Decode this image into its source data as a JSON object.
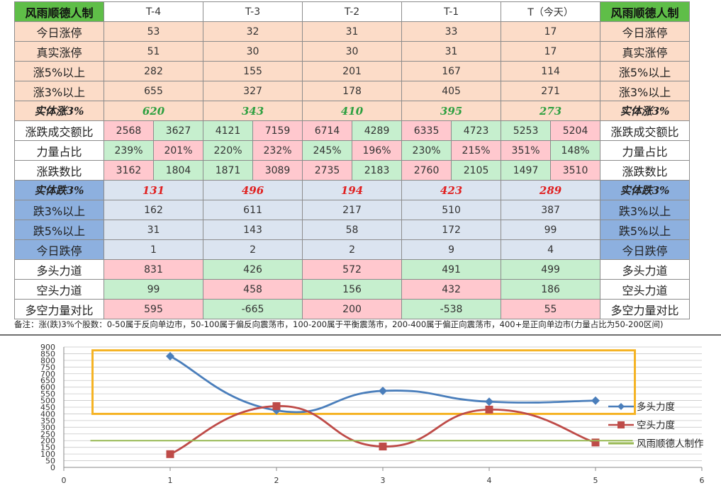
{
  "table": {
    "corner_label": "风雨顺德人制",
    "columns": [
      "T-4",
      "T-3",
      "T-2",
      "T-1",
      "T（今天）"
    ],
    "rows": [
      {
        "label": "今日涨停",
        "kind": "single",
        "section": "up",
        "values": [
          "53",
          "32",
          "31",
          "33",
          "17"
        ]
      },
      {
        "label": "真实涨停",
        "kind": "single",
        "section": "up",
        "values": [
          "51",
          "30",
          "30",
          "31",
          "17"
        ]
      },
      {
        "label": "涨5%以上",
        "kind": "single",
        "section": "up",
        "values": [
          "282",
          "155",
          "201",
          "167",
          "114"
        ]
      },
      {
        "label": "涨3%以上",
        "kind": "single",
        "section": "up",
        "values": [
          "655",
          "327",
          "178",
          "405",
          "271"
        ]
      },
      {
        "label": "实体涨3%",
        "kind": "bold",
        "section": "up",
        "tone": "green",
        "values": [
          "620",
          "343",
          "410",
          "395",
          "273"
        ]
      },
      {
        "label": "涨跌成交额比",
        "kind": "pair",
        "values": [
          "2568",
          "3627",
          "4121",
          "7159",
          "6714",
          "4289",
          "6335",
          "4723",
          "5253",
          "5204"
        ],
        "colors": [
          "red",
          "green",
          "green",
          "red",
          "red",
          "green",
          "red",
          "green",
          "green",
          "red"
        ]
      },
      {
        "label": "力量占比",
        "kind": "pair",
        "values": [
          "239%",
          "201%",
          "220%",
          "232%",
          "245%",
          "196%",
          "230%",
          "215%",
          "351%",
          "148%"
        ],
        "colors": [
          "green",
          "red",
          "green",
          "red",
          "green",
          "red",
          "green",
          "red",
          "red",
          "green"
        ]
      },
      {
        "label": "涨跌数比",
        "kind": "pair",
        "values": [
          "3162",
          "1804",
          "1871",
          "3089",
          "2735",
          "2183",
          "2760",
          "2105",
          "1497",
          "3510"
        ],
        "colors": [
          "red",
          "green",
          "green",
          "red",
          "red",
          "green",
          "red",
          "green",
          "green",
          "red"
        ]
      },
      {
        "label": "实体跌3%",
        "kind": "bold",
        "section": "down",
        "tone": "red",
        "values": [
          "131",
          "496",
          "194",
          "423",
          "289"
        ]
      },
      {
        "label": "跌3%以上",
        "kind": "single",
        "section": "down",
        "values": [
          "162",
          "611",
          "217",
          "510",
          "387"
        ]
      },
      {
        "label": "跌5%以上",
        "kind": "single",
        "section": "down",
        "values": [
          "31",
          "143",
          "58",
          "172",
          "99"
        ]
      },
      {
        "label": "今日跌停",
        "kind": "single",
        "section": "down",
        "values": [
          "1",
          "2",
          "2",
          "9",
          "4"
        ]
      },
      {
        "label": "多头力道",
        "kind": "colored",
        "values": [
          "831",
          "426",
          "572",
          "491",
          "499"
        ],
        "colors": [
          "red",
          "green",
          "red",
          "green",
          "green"
        ]
      },
      {
        "label": "空头力道",
        "kind": "colored",
        "values": [
          "99",
          "458",
          "156",
          "432",
          "186"
        ],
        "colors": [
          "green",
          "red",
          "green",
          "red",
          "green"
        ]
      },
      {
        "label": "多空力量对比",
        "kind": "colored",
        "values": [
          "595",
          "-665",
          "200",
          "-538",
          "55"
        ],
        "colors": [
          "red",
          "green",
          "red",
          "green",
          "red"
        ]
      }
    ],
    "note": "备注：涨(跌)3%个股数：0-50属于反向单边市，50-100属于偏反向震荡市，100-200属于平衡震荡市，200-400属于偏正向震荡市，400+是正向单边市(力量占比为50-200区间)"
  },
  "colors": {
    "up_bg": "#fcdcc8",
    "down_bg": "#dbe4f0",
    "down_label_bg": "#8db0df",
    "corner_bg": "#5fbe48",
    "cell_red": "#ffc8ce",
    "cell_green": "#c6efce",
    "bold_green": "#2da040",
    "bold_red": "#e02020",
    "highlight_box": "#f5b324"
  },
  "chart_data": {
    "type": "line",
    "xlim": [
      0,
      6
    ],
    "ylim": [
      0,
      900
    ],
    "xticks": [
      0,
      1,
      2,
      3,
      4,
      5,
      6
    ],
    "yticks": [
      0,
      50,
      100,
      150,
      200,
      250,
      300,
      350,
      400,
      450,
      500,
      550,
      600,
      650,
      700,
      750,
      800,
      850,
      900
    ],
    "grid": true,
    "legend_position": "right",
    "series": [
      {
        "name": "多头力度",
        "color": "#4a7ebb",
        "marker": "diamond",
        "x": [
          1,
          2,
          3,
          4,
          5
        ],
        "y": [
          831,
          426,
          572,
          491,
          499
        ]
      },
      {
        "name": "空头力度",
        "color": "#be4b48",
        "marker": "square",
        "x": [
          1,
          2,
          3,
          4,
          5
        ],
        "y": [
          99,
          458,
          156,
          432,
          186
        ]
      },
      {
        "name": "风雨顺德人制作",
        "color": "#98b954",
        "marker": "none",
        "x": [
          0.25,
          5.35
        ],
        "y": [
          200,
          200
        ]
      }
    ],
    "highlight_box": {
      "x": [
        0.27,
        5.37
      ],
      "y": [
        400,
        875
      ]
    }
  }
}
